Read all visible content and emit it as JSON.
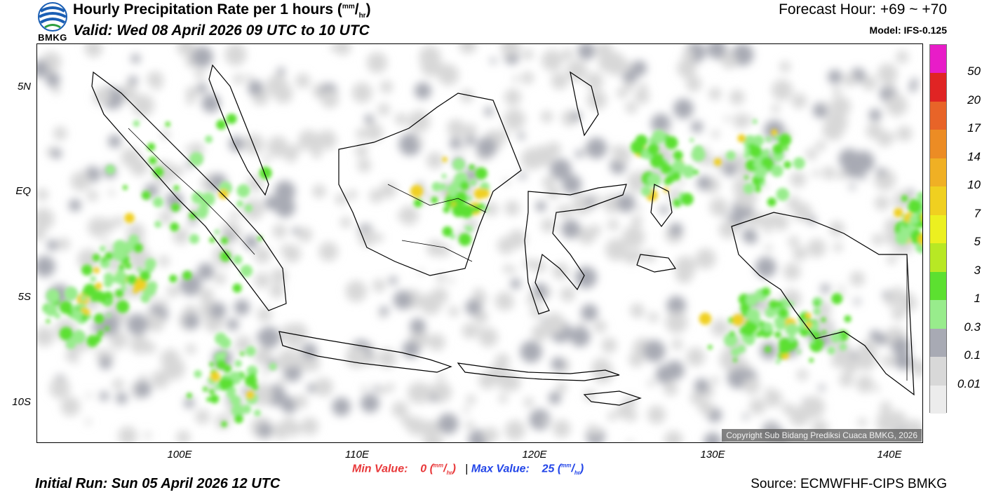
{
  "header": {
    "logo_text": "BMKG",
    "title": "Hourly Precipitation Rate per 1 hours",
    "title_unit_num": "mm",
    "title_unit_den": "hr",
    "valid": "Valid: Wed 08 April 2026 09 UTC to 10 UTC",
    "forecast_hour": "Forecast Hour: +69 ~ +70",
    "model": "Model: IFS-0.125"
  },
  "map": {
    "lat_labels": [
      "5N",
      "EQ",
      "5S",
      "10S"
    ],
    "lon_labels": [
      "100E",
      "110E",
      "120E",
      "130E",
      "140E"
    ],
    "copyright": "Copyright Sub Bidang Prediksi Cuaca BMKG, 2026",
    "colors": {
      "coastline": "#000000",
      "border": "#000000",
      "land_edge": "#888888"
    }
  },
  "colorbar": {
    "labels": [
      "50",
      "20",
      "17",
      "14",
      "10",
      "7",
      "5",
      "3",
      "1",
      "0.3",
      "0.1",
      "0.01"
    ],
    "colors": [
      "#e81cc8",
      "#e02424",
      "#e86428",
      "#ec8c24",
      "#f0b024",
      "#f0d020",
      "#ecf020",
      "#b8e824",
      "#5ce030",
      "#98ec8c",
      "#a8aab4",
      "#d8d8d8",
      "#ececec"
    ]
  },
  "footer": {
    "min_label": "Min Value:",
    "min_value": "0",
    "max_label": "Max Value:",
    "max_value": "25",
    "unit_num": "mm",
    "unit_den": "hr",
    "separator": "|",
    "initial_run": "Initial Run: Sun 05 April 2026 12 UTC",
    "source": "Source: ECMWFHF-CIPS BMKG"
  }
}
